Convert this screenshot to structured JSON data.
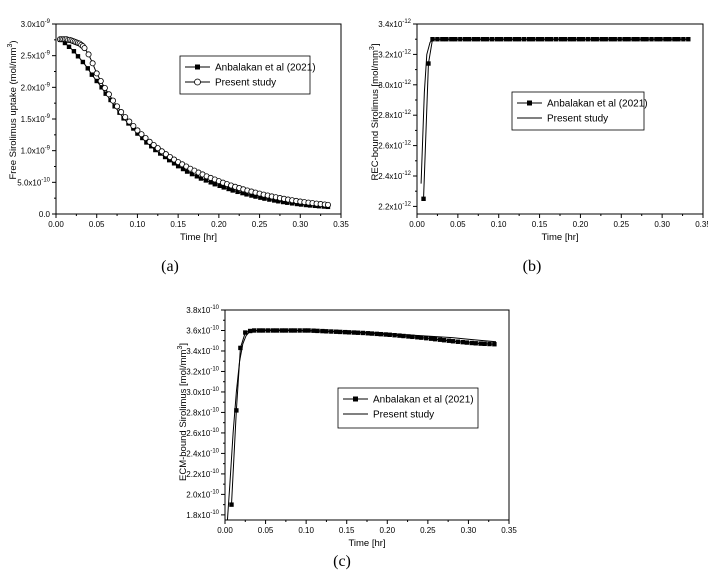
{
  "chart_data": [
    {
      "type": "line",
      "panel_label": "(a)",
      "xlabel": "Time [hr]",
      "ylabel": "Free Sirolimus uptake (mol/mm",
      "ylabel_sup": "3",
      "ylabel_end": ")",
      "xlim": [
        0.0,
        0.35
      ],
      "ylim": [
        0.0,
        3e-09
      ],
      "x_ticks": [
        "0.00",
        "0.05",
        "0.10",
        "0.15",
        "0.20",
        "0.25",
        "0.30",
        "0.35"
      ],
      "y_ticks": [
        {
          "m": "0.0",
          "e": ""
        },
        {
          "m": "5.0x10",
          "e": "-10"
        },
        {
          "m": "1.0x10",
          "e": "-9"
        },
        {
          "m": "1.5x10",
          "e": "-9"
        },
        {
          "m": "2.0x10",
          "e": "-9"
        },
        {
          "m": "2.5x10",
          "e": "-9"
        },
        {
          "m": "3.0x10",
          "e": "-9"
        }
      ],
      "legend_position": "upper-right",
      "series": [
        {
          "name": "Anbalakan et al (2021)",
          "marker": "filled-square",
          "x": [
            0.005,
            0.011,
            0.016,
            0.022,
            0.027,
            0.033,
            0.039,
            0.044,
            0.05,
            0.056,
            0.061,
            0.067,
            0.072,
            0.078,
            0.083,
            0.089,
            0.095,
            0.1,
            0.106,
            0.111,
            0.117,
            0.122,
            0.128,
            0.134,
            0.139,
            0.145,
            0.15,
            0.156,
            0.161,
            0.167,
            0.173,
            0.178,
            0.184,
            0.19,
            0.195,
            0.201,
            0.206,
            0.212,
            0.217,
            0.223,
            0.229,
            0.234,
            0.24,
            0.245,
            0.251,
            0.256,
            0.262,
            0.268,
            0.273,
            0.279,
            0.284,
            0.29,
            0.296,
            0.301,
            0.307,
            0.312,
            0.318,
            0.323,
            0.329,
            0.334
          ],
          "y": [
            2.75e-09,
            2.7e-09,
            2.64e-09,
            2.57e-09,
            2.49e-09,
            2.4e-09,
            2.3e-09,
            2.2e-09,
            2.1e-09,
            2e-09,
            1.9e-09,
            1.8e-09,
            1.7e-09,
            1.6e-09,
            1.51e-09,
            1.43e-09,
            1.35e-09,
            1.27e-09,
            1.2e-09,
            1.13e-09,
            1.07e-09,
            1.01e-09,
            9.55e-10,
            9e-10,
            8.5e-10,
            8e-10,
            7.55e-10,
            7.1e-10,
            6.7e-10,
            6.3e-10,
            5.95e-10,
            5.6e-10,
            5.3e-10,
            5e-10,
            4.7e-10,
            4.45e-10,
            4.2e-10,
            3.95e-10,
            3.72e-10,
            3.5e-10,
            3.3e-10,
            3.1e-10,
            2.92e-10,
            2.75e-10,
            2.58e-10,
            2.43e-10,
            2.28e-10,
            2.14e-10,
            2.01e-10,
            1.89e-10,
            1.78e-10,
            1.68e-10,
            1.58e-10,
            1.5e-10,
            1.42e-10,
            1.35e-10,
            1.29e-10,
            1.23e-10,
            1.18e-10,
            1.13e-10
          ]
        },
        {
          "name": "Present study",
          "marker": "open-circle",
          "x": [
            0.005,
            0.007,
            0.009,
            0.011,
            0.013,
            0.015,
            0.017,
            0.019,
            0.021,
            0.023,
            0.025,
            0.027,
            0.029,
            0.031,
            0.033,
            0.035,
            0.04,
            0.045,
            0.05,
            0.055,
            0.06,
            0.065,
            0.07,
            0.075,
            0.08,
            0.085,
            0.09,
            0.095,
            0.1,
            0.105,
            0.11,
            0.115,
            0.12,
            0.125,
            0.13,
            0.135,
            0.14,
            0.145,
            0.15,
            0.155,
            0.16,
            0.165,
            0.17,
            0.175,
            0.18,
            0.185,
            0.19,
            0.195,
            0.2,
            0.205,
            0.21,
            0.215,
            0.22,
            0.225,
            0.23,
            0.235,
            0.24,
            0.245,
            0.25,
            0.255,
            0.26,
            0.265,
            0.27,
            0.275,
            0.28,
            0.285,
            0.29,
            0.295,
            0.3,
            0.305,
            0.31,
            0.315,
            0.32,
            0.325,
            0.33,
            0.334
          ],
          "y": [
            2.76e-09,
            2.76e-09,
            2.76e-09,
            2.76e-09,
            2.76e-09,
            2.75e-09,
            2.75e-09,
            2.74e-09,
            2.73e-09,
            2.72e-09,
            2.71e-09,
            2.7e-09,
            2.69e-09,
            2.67e-09,
            2.65e-09,
            2.62e-09,
            2.52e-09,
            2.38e-09,
            2.22e-09,
            2.1e-09,
            1.99e-09,
            1.89e-09,
            1.79e-09,
            1.7e-09,
            1.61e-09,
            1.53e-09,
            1.46e-09,
            1.39e-09,
            1.32e-09,
            1.26e-09,
            1.2e-09,
            1.14e-09,
            1.09e-09,
            1.04e-09,
            9.9e-10,
            9.45e-10,
            9e-10,
            8.6e-10,
            8.2e-10,
            7.85e-10,
            7.5e-10,
            7.15e-10,
            6.85e-10,
            6.55e-10,
            6.25e-10,
            5.95e-10,
            5.7e-10,
            5.45e-10,
            5.2e-10,
            4.95e-10,
            4.72e-10,
            4.5e-10,
            4.3e-10,
            4.1e-10,
            3.9e-10,
            3.72e-10,
            3.55e-10,
            3.38e-10,
            3.22e-10,
            3.06e-10,
            2.92e-10,
            2.78e-10,
            2.65e-10,
            2.52e-10,
            2.4e-10,
            2.28e-10,
            2.17e-10,
            2.07e-10,
            1.97e-10,
            1.88e-10,
            1.8e-10,
            1.72e-10,
            1.64e-10,
            1.57e-10,
            1.5e-10,
            1.45e-10
          ]
        }
      ]
    },
    {
      "type": "line",
      "panel_label": "(b)",
      "xlabel": "Time [hr]",
      "ylabel": "REC-bound Sirolimus [mol/mm",
      "ylabel_sup": "3",
      "ylabel_end": "]",
      "xlim": [
        0.0,
        0.35
      ],
      "ylim": [
        2.15e-12,
        3.4e-12
      ],
      "x_ticks": [
        "0.00",
        "0.05",
        "0.10",
        "0.15",
        "0.20",
        "0.25",
        "0.30",
        "0.35"
      ],
      "y_ticks": [
        {
          "m": "2.2x10",
          "e": "-12"
        },
        {
          "m": "2.4x10",
          "e": "-12"
        },
        {
          "m": "2.6x10",
          "e": "-12"
        },
        {
          "m": "2.8x10",
          "e": "-12"
        },
        {
          "m": "3.0x10",
          "e": "-12"
        },
        {
          "m": "3.2x10",
          "e": "-12"
        },
        {
          "m": "3.4x10",
          "e": "-12"
        }
      ],
      "legend_position": "center-right",
      "series": [
        {
          "name": "Anbalakan et al (2021)",
          "marker": "filled-square",
          "x": [
            0.008,
            0.014,
            0.019,
            0.025,
            0.031,
            0.036,
            0.042,
            0.047,
            0.053,
            0.059,
            0.064,
            0.07,
            0.075,
            0.081,
            0.086,
            0.092,
            0.098,
            0.103,
            0.109,
            0.114,
            0.12,
            0.125,
            0.131,
            0.137,
            0.142,
            0.148,
            0.153,
            0.159,
            0.164,
            0.17,
            0.176,
            0.181,
            0.187,
            0.192,
            0.198,
            0.203,
            0.209,
            0.215,
            0.22,
            0.226,
            0.231,
            0.237,
            0.242,
            0.248,
            0.254,
            0.259,
            0.265,
            0.27,
            0.276,
            0.281,
            0.287,
            0.293,
            0.298,
            0.304,
            0.309,
            0.315,
            0.32,
            0.326,
            0.332
          ],
          "y": [
            2.25e-12,
            3.14e-12,
            3.3e-12,
            3.3e-12,
            3.3e-12,
            3.3e-12,
            3.3e-12,
            3.3e-12,
            3.3e-12,
            3.3e-12,
            3.3e-12,
            3.3e-12,
            3.3e-12,
            3.3e-12,
            3.3e-12,
            3.3e-12,
            3.3e-12,
            3.3e-12,
            3.3e-12,
            3.3e-12,
            3.3e-12,
            3.3e-12,
            3.3e-12,
            3.3e-12,
            3.3e-12,
            3.3e-12,
            3.3e-12,
            3.3e-12,
            3.3e-12,
            3.3e-12,
            3.3e-12,
            3.3e-12,
            3.3e-12,
            3.3e-12,
            3.3e-12,
            3.3e-12,
            3.3e-12,
            3.3e-12,
            3.3e-12,
            3.3e-12,
            3.3e-12,
            3.3e-12,
            3.3e-12,
            3.3e-12,
            3.3e-12,
            3.3e-12,
            3.3e-12,
            3.3e-12,
            3.3e-12,
            3.3e-12,
            3.3e-12,
            3.3e-12,
            3.3e-12,
            3.3e-12,
            3.3e-12,
            3.3e-12,
            3.3e-12,
            3.3e-12,
            3.3e-12
          ]
        },
        {
          "name": "Present study",
          "marker": "none",
          "x": [
            0.005,
            0.009,
            0.012,
            0.016,
            0.02,
            0.025,
            0.03,
            0.05,
            0.1,
            0.15,
            0.2,
            0.25,
            0.3,
            0.334
          ],
          "y": [
            2.35e-12,
            2.95e-12,
            3.2e-12,
            3.28e-12,
            3.3e-12,
            3.3e-12,
            3.3e-12,
            3.3e-12,
            3.3e-12,
            3.3e-12,
            3.3e-12,
            3.3e-12,
            3.3e-12,
            3.3e-12
          ]
        }
      ]
    },
    {
      "type": "line",
      "panel_label": "(c)",
      "xlabel": "Time [hr]",
      "ylabel": "ECM-bound Sirolimus [mol/mm",
      "ylabel_sup": "3",
      "ylabel_end": "]",
      "xlim": [
        0.0,
        0.35
      ],
      "ylim": [
        1.75e-10,
        3.8e-10
      ],
      "x_ticks": [
        "0.00",
        "0.05",
        "0.10",
        "0.15",
        "0.20",
        "0.25",
        "0.30",
        "0.35"
      ],
      "y_ticks": [
        {
          "m": "1.8x10",
          "e": "-10"
        },
        {
          "m": "2.0x10",
          "e": "-10"
        },
        {
          "m": "2.2x10",
          "e": "-10"
        },
        {
          "m": "2.4x10",
          "e": "-10"
        },
        {
          "m": "2.6x10",
          "e": "-10"
        },
        {
          "m": "2.8x10",
          "e": "-10"
        },
        {
          "m": "3.0x10",
          "e": "-10"
        },
        {
          "m": "3.2x10",
          "e": "-10"
        },
        {
          "m": "3.4x10",
          "e": "-10"
        },
        {
          "m": "3.6x10",
          "e": "-10"
        },
        {
          "m": "3.8x10",
          "e": "-10"
        }
      ],
      "legend_position": "center-right",
      "series": [
        {
          "name": "Anbalakan et al (2021)",
          "marker": "filled-square",
          "x": [
            0.008,
            0.014,
            0.019,
            0.025,
            0.031,
            0.036,
            0.042,
            0.047,
            0.053,
            0.059,
            0.064,
            0.07,
            0.075,
            0.081,
            0.086,
            0.092,
            0.098,
            0.103,
            0.109,
            0.114,
            0.12,
            0.125,
            0.131,
            0.137,
            0.142,
            0.148,
            0.153,
            0.159,
            0.164,
            0.17,
            0.176,
            0.181,
            0.187,
            0.192,
            0.198,
            0.203,
            0.209,
            0.215,
            0.22,
            0.226,
            0.231,
            0.237,
            0.242,
            0.248,
            0.254,
            0.259,
            0.265,
            0.27,
            0.276,
            0.281,
            0.287,
            0.293,
            0.298,
            0.304,
            0.309,
            0.315,
            0.32,
            0.326,
            0.332
          ],
          "y": [
            1.9e-10,
            2.82e-10,
            3.43e-10,
            3.58e-10,
            3.595e-10,
            3.6e-10,
            3.6e-10,
            3.6e-10,
            3.6e-10,
            3.6e-10,
            3.6e-10,
            3.6e-10,
            3.6e-10,
            3.6e-10,
            3.6e-10,
            3.6e-10,
            3.6e-10,
            3.6e-10,
            3.598e-10,
            3.596e-10,
            3.594e-10,
            3.592e-10,
            3.59e-10,
            3.588e-10,
            3.586e-10,
            3.584e-10,
            3.582e-10,
            3.58e-10,
            3.578e-10,
            3.576e-10,
            3.573e-10,
            3.57e-10,
            3.567e-10,
            3.564e-10,
            3.561e-10,
            3.558e-10,
            3.554e-10,
            3.55e-10,
            3.546e-10,
            3.542e-10,
            3.538e-10,
            3.534e-10,
            3.53e-10,
            3.525e-10,
            3.52e-10,
            3.515e-10,
            3.51e-10,
            3.505e-10,
            3.5e-10,
            3.495e-10,
            3.49e-10,
            3.486e-10,
            3.482e-10,
            3.478e-10,
            3.475e-10,
            3.472e-10,
            3.47e-10,
            3.468e-10,
            3.466e-10
          ]
        },
        {
          "name": "Present study",
          "marker": "none",
          "x": [
            0.003,
            0.006,
            0.01,
            0.014,
            0.018,
            0.022,
            0.026,
            0.03,
            0.035,
            0.04,
            0.05,
            0.06,
            0.07,
            0.08,
            0.09,
            0.1,
            0.12,
            0.14,
            0.16,
            0.18,
            0.2,
            0.22,
            0.24,
            0.26,
            0.28,
            0.3,
            0.32,
            0.334
          ],
          "y": [
            1.75e-10,
            2.1e-10,
            2.6e-10,
            3e-10,
            3.3e-10,
            3.47e-10,
            3.55e-10,
            3.585e-10,
            3.595e-10,
            3.6e-10,
            3.605e-10,
            3.605e-10,
            3.605e-10,
            3.603e-10,
            3.6e-10,
            3.598e-10,
            3.594e-10,
            3.59e-10,
            3.585e-10,
            3.578e-10,
            3.57e-10,
            3.56e-10,
            3.55e-10,
            3.54e-10,
            3.53e-10,
            3.515e-10,
            3.5e-10,
            3.49e-10
          ]
        }
      ]
    }
  ]
}
